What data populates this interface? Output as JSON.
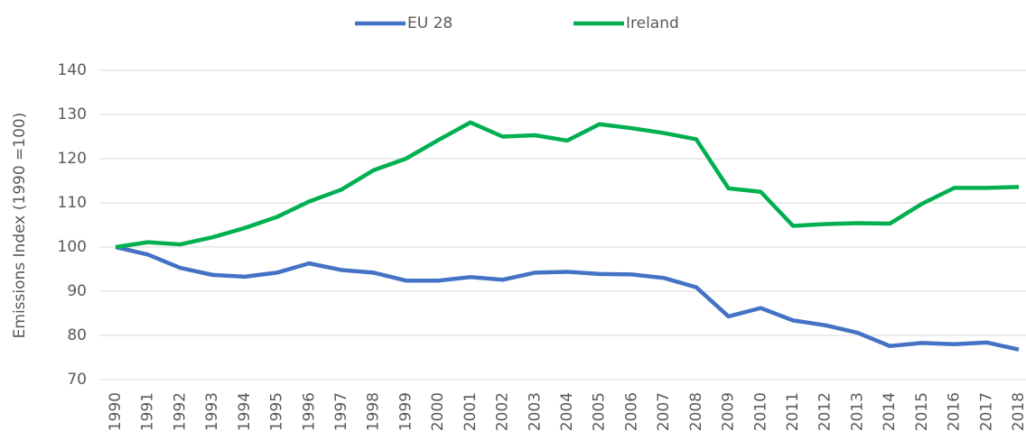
{
  "chart_data": {
    "type": "line",
    "y_label": "Emissions Index (1990 =100)",
    "categories": [
      "1990",
      "1991",
      "1992",
      "1993",
      "1994",
      "1995",
      "1996",
      "1997",
      "1998",
      "1999",
      "2000",
      "2001",
      "2002",
      "2003",
      "2004",
      "2005",
      "2006",
      "2007",
      "2008",
      "2009",
      "2010",
      "2011",
      "2012",
      "2013",
      "2014",
      "2015",
      "2016",
      "2017",
      "2018"
    ],
    "series": [
      {
        "name": "EU 28",
        "color": "#4472c4",
        "values": [
          100,
          98.3,
          95.3,
          93.7,
          93.3,
          94.2,
          96.3,
          94.8,
          94.2,
          92.4,
          92.4,
          93.2,
          92.6,
          94.2,
          94.4,
          93.9,
          93.8,
          93.0,
          90.9,
          84.3,
          86.2,
          83.4,
          82.3,
          80.6,
          77.6,
          78.3,
          78.0,
          78.4,
          76.8
        ]
      },
      {
        "name": "Ireland",
        "color": "#00b050",
        "values": [
          100,
          101.1,
          100.6,
          102.2,
          104.3,
          106.8,
          110.3,
          113.0,
          117.4,
          120.0,
          124.2,
          128.2,
          125.0,
          125.3,
          124.1,
          127.8,
          126.9,
          125.8,
          124.4,
          113.3,
          112.5,
          104.8,
          105.2,
          105.4,
          105.3,
          109.8,
          113.4,
          113.4,
          113.6
        ]
      }
    ],
    "ylim": [
      70,
      140
    ],
    "yticks": [
      70,
      80,
      90,
      100,
      110,
      120,
      130,
      140
    ],
    "grid": true,
    "legend": "top"
  }
}
